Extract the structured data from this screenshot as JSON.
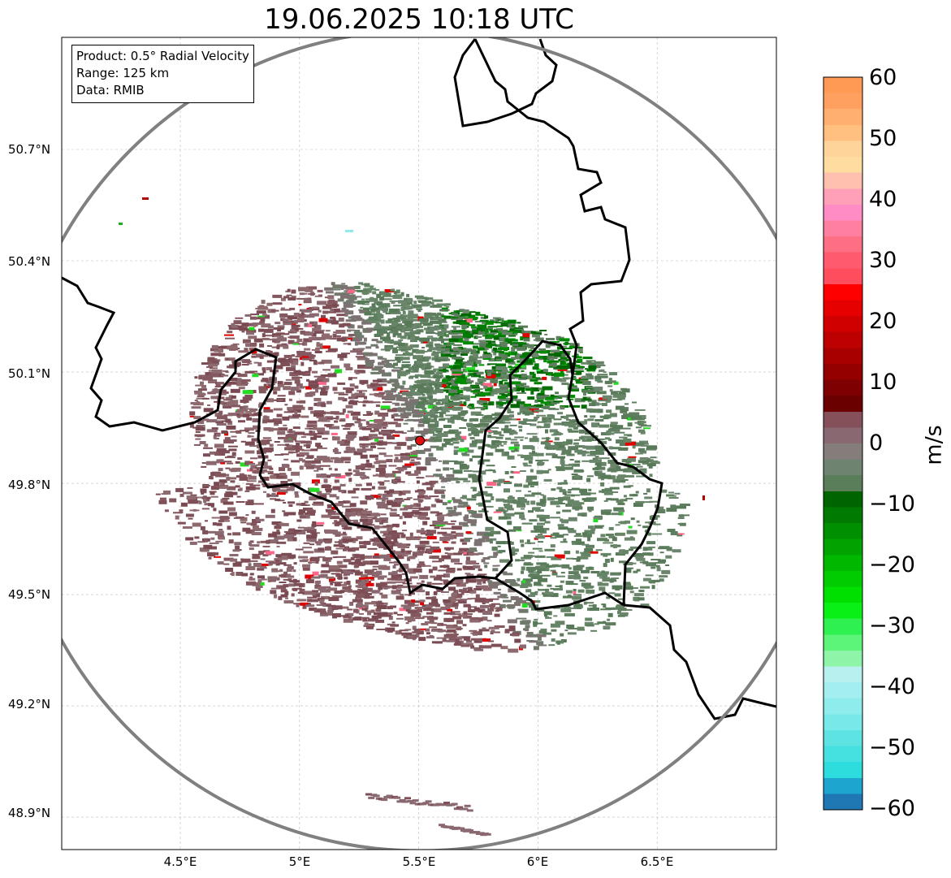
{
  "title": "19.06.2025 10:18 UTC",
  "info": {
    "product": "Product: 0.5° Radial Velocity",
    "range": "Range: 125 km",
    "data": "Data: RMIB"
  },
  "axes": {
    "x_ticks": [
      "4.5°E",
      "5°E",
      "5.5°E",
      "6°E",
      "6.5°E"
    ],
    "x_tick_values": [
      4.5,
      5.0,
      5.5,
      6.0,
      6.5
    ],
    "y_ticks": [
      "50.7°N",
      "50.4°N",
      "50.1°N",
      "49.8°N",
      "49.5°N",
      "49.2°N",
      "48.9°N"
    ],
    "y_tick_values": [
      50.7,
      50.4,
      50.1,
      49.8,
      49.5,
      49.2,
      48.9
    ],
    "lon_range": [
      4.0,
      7.0
    ],
    "lat_range": [
      48.8,
      51.0
    ],
    "grid": true
  },
  "radar": {
    "lon": 5.505,
    "lat": 49.915,
    "range_km": 125,
    "site_color": "#dd1111",
    "range_ring_color": "#808080"
  },
  "colorbar": {
    "label": "m/s",
    "ticks": [
      "60",
      "50",
      "40",
      "30",
      "20",
      "10",
      "0",
      "−10",
      "−20",
      "−30",
      "−40",
      "−50",
      "−60"
    ],
    "min": -60,
    "max": 60,
    "colors": [
      "#1f77b4",
      "#1ea5cf",
      "#2ddcdc",
      "#45e0e0",
      "#5ee3e3",
      "#78e8e8",
      "#8fecec",
      "#a3eeee",
      "#b8f0f0",
      "#8ef5a8",
      "#5cf57a",
      "#2ef050",
      "#08f015",
      "#00e000",
      "#00cc00",
      "#00b800",
      "#00a300",
      "#008f00",
      "#007a00",
      "#006400",
      "#5a7d5a",
      "#6e8470",
      "#857c7c",
      "#8a6872",
      "#86505a",
      "#6b0000",
      "#7f0000",
      "#940000",
      "#a80000",
      "#bd0000",
      "#d10000",
      "#e60000",
      "#ff0000",
      "#ff4d5d",
      "#ff5a6e",
      "#ff6f84",
      "#ff7fa0",
      "#ff8cc4",
      "#ffa0b8",
      "#ffc0b0",
      "#ffdca0",
      "#ffd49a",
      "#ffc080",
      "#ffb070",
      "#ffa060",
      "#ff9a55"
    ]
  }
}
